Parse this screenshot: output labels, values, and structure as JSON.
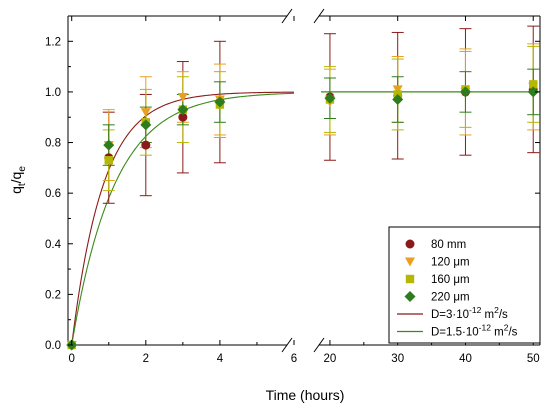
{
  "chart_data": {
    "type": "scatter",
    "title": "",
    "xlabel": "Time (hours)",
    "ylabel_main": "q",
    "ylabel_sub1": "t",
    "ylabel_sep": "/q",
    "ylabel_sub2": "e",
    "ylim": [
      0.0,
      1.3
    ],
    "x_segments": [
      {
        "range": [
          -0.1,
          6.0
        ],
        "ticks": [
          0,
          2,
          4,
          6
        ]
      },
      {
        "range": [
          17.5,
          51.0
        ],
        "ticks": [
          20,
          30,
          40,
          50
        ]
      }
    ],
    "y_ticks": [
      0.0,
      0.2,
      0.4,
      0.6,
      0.8,
      1.0,
      1.2
    ],
    "y_tick_labels": [
      "0.0",
      "0.2",
      "0.4",
      "0.6",
      "0.8",
      "1.0",
      "1.2"
    ],
    "x_tick_labels": [
      "0",
      "2",
      "4",
      "6",
      "20",
      "30",
      "40",
      "50"
    ],
    "grid": false,
    "legend_position": "bottom-right",
    "series": [
      {
        "name": "80 mm",
        "marker": "circle",
        "color": "#8b1a1a",
        "points": [
          {
            "x": 0,
            "y": 0.0,
            "err": 0
          },
          {
            "x": 1,
            "y": 0.74,
            "err": 0.18
          },
          {
            "x": 2,
            "y": 0.79,
            "err": 0.2
          },
          {
            "x": 3,
            "y": 0.9,
            "err": 0.22
          },
          {
            "x": 4,
            "y": 0.96,
            "err": 0.24
          },
          {
            "x": 20,
            "y": 0.98,
            "err": 0.25
          },
          {
            "x": 30,
            "y": 0.985,
            "err": 0.25
          },
          {
            "x": 40,
            "y": 1.0,
            "err": 0.25
          },
          {
            "x": 50,
            "y": 1.01,
            "err": 0.25
          }
        ]
      },
      {
        "name": "120 μm",
        "marker": "triangle-down",
        "color": "#e8a020",
        "points": [
          {
            "x": 0,
            "y": 0.0,
            "err": 0
          },
          {
            "x": 1,
            "y": 0.79,
            "err": 0.14
          },
          {
            "x": 2,
            "y": 0.92,
            "err": 0.14
          },
          {
            "x": 3,
            "y": 0.98,
            "err": 0.1
          },
          {
            "x": 4,
            "y": 0.97,
            "err": 0.14
          },
          {
            "x": 20,
            "y": 0.96,
            "err": 0.13
          },
          {
            "x": 30,
            "y": 1.01,
            "err": 0.13
          },
          {
            "x": 40,
            "y": 1.0,
            "err": 0.17
          },
          {
            "x": 50,
            "y": 1.02,
            "err": 0.17
          }
        ]
      },
      {
        "name": "160 μm",
        "marker": "square",
        "color": "#b5b800",
        "points": [
          {
            "x": 0,
            "y": 0.0,
            "err": 0
          },
          {
            "x": 1,
            "y": 0.73,
            "err": 0.12
          },
          {
            "x": 2,
            "y": 0.88,
            "err": 0.13
          },
          {
            "x": 3,
            "y": 0.93,
            "err": 0.13
          },
          {
            "x": 4,
            "y": 0.95,
            "err": 0.13
          },
          {
            "x": 20,
            "y": 0.97,
            "err": 0.13
          },
          {
            "x": 30,
            "y": 0.99,
            "err": 0.14
          },
          {
            "x": 40,
            "y": 1.01,
            "err": 0.15
          },
          {
            "x": 50,
            "y": 1.03,
            "err": 0.15
          }
        ]
      },
      {
        "name": "220 μm",
        "marker": "diamond",
        "color": "#2e7d1c",
        "points": [
          {
            "x": 0,
            "y": 0.0,
            "err": 0
          },
          {
            "x": 1,
            "y": 0.79,
            "err": 0.08
          },
          {
            "x": 2,
            "y": 0.87,
            "err": 0.07
          },
          {
            "x": 3,
            "y": 0.93,
            "err": 0.06
          },
          {
            "x": 4,
            "y": 0.96,
            "err": 0.08
          },
          {
            "x": 20,
            "y": 0.975,
            "err": 0.08
          },
          {
            "x": 30,
            "y": 0.97,
            "err": 0.09
          },
          {
            "x": 40,
            "y": 1.0,
            "err": 0.08
          },
          {
            "x": 50,
            "y": 1.0,
            "err": 0.09
          }
        ]
      }
    ],
    "model_curves": [
      {
        "label_prefix": "D=3·10",
        "label_exp": "-12",
        "label_unit": " m",
        "label_unit_exp": "2",
        "label_suffix": "/s",
        "color": "#8b1a1a",
        "tau_hours": 0.85
      },
      {
        "label_prefix": "D=1.5·10",
        "label_exp": "-12",
        "label_unit": " m",
        "label_unit_exp": "2",
        "label_suffix": "/s",
        "color": "#3a8a1a",
        "tau_hours": 1.15
      }
    ]
  }
}
